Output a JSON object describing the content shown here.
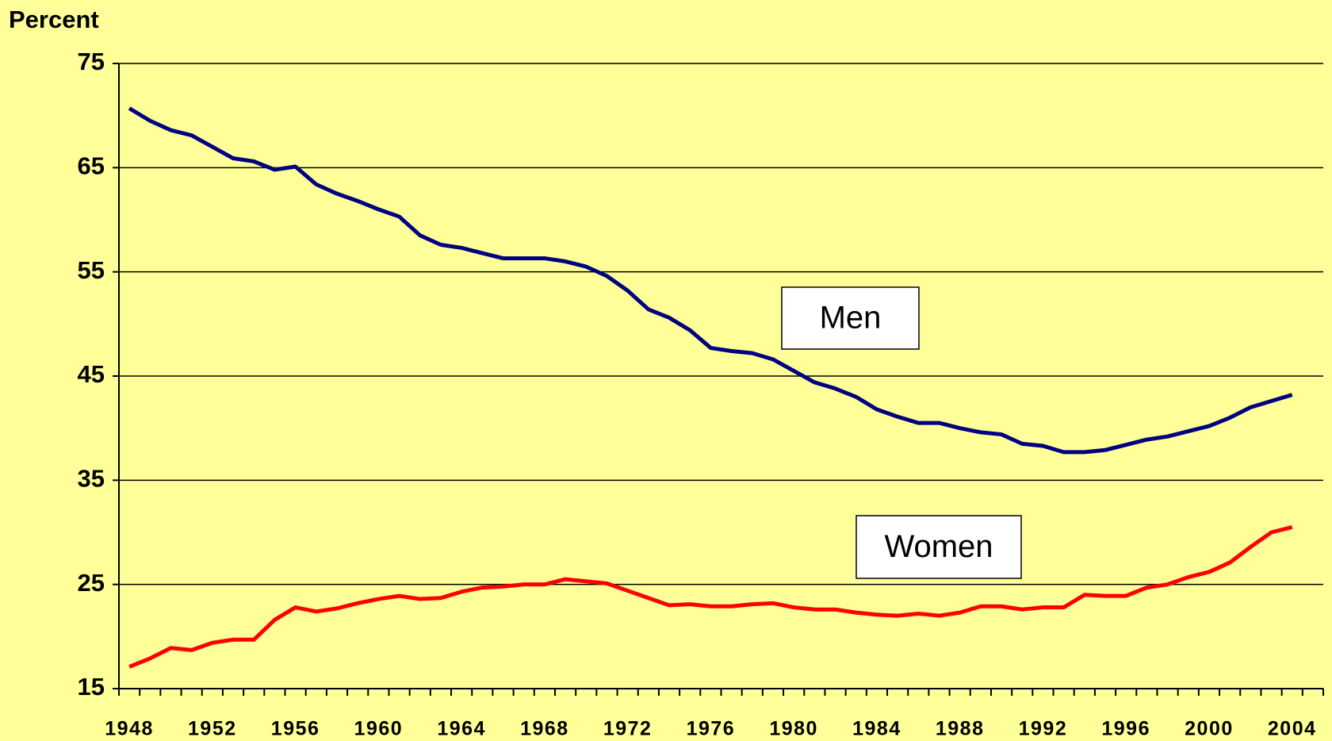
{
  "chart_data": {
    "type": "line",
    "y_label": "Percent",
    "categories": [
      "1948",
      null,
      null,
      null,
      "1952",
      null,
      null,
      null,
      "1956",
      null,
      null,
      null,
      "1960",
      null,
      null,
      null,
      "1964",
      null,
      null,
      null,
      "1968",
      null,
      null,
      null,
      "1972",
      null,
      null,
      null,
      "1976",
      null,
      null,
      null,
      "1980",
      null,
      null,
      null,
      "1984",
      null,
      null,
      null,
      "1988",
      null,
      null,
      null,
      "1992",
      null,
      null,
      null,
      "1996",
      null,
      null,
      null,
      "2000",
      null,
      null,
      null,
      "2004",
      null
    ],
    "series": [
      {
        "name": "Men",
        "color": "#000080",
        "values": [
          70.7,
          69.5,
          68.6,
          68.1,
          67.0,
          65.9,
          65.6,
          64.8,
          65.1,
          63.4,
          62.5,
          61.8,
          61.0,
          60.3,
          58.5,
          57.6,
          57.3,
          56.8,
          56.3,
          56.3,
          56.3,
          56.0,
          55.5,
          54.6,
          53.2,
          51.4,
          50.6,
          49.4,
          47.7,
          47.4,
          47.2,
          46.6,
          45.5,
          44.4,
          43.8,
          43.0,
          41.8,
          41.1,
          40.5,
          40.5,
          40.0,
          39.6,
          39.4,
          38.5,
          38.3,
          37.7,
          37.7,
          37.9,
          38.4,
          38.9,
          39.2,
          39.7,
          40.2,
          41.0,
          42.0,
          42.6,
          43.2,
          null
        ]
      },
      {
        "name": "Women",
        "color": "#ff0000",
        "values": [
          17.1,
          17.9,
          18.9,
          18.7,
          19.4,
          19.7,
          19.7,
          21.6,
          22.8,
          22.4,
          22.7,
          23.2,
          23.6,
          23.9,
          23.6,
          23.7,
          24.3,
          24.7,
          24.8,
          25.0,
          25.0,
          25.5,
          25.3,
          25.1,
          24.4,
          23.7,
          23.0,
          23.1,
          22.9,
          22.9,
          23.1,
          23.2,
          22.8,
          22.6,
          22.6,
          22.3,
          22.1,
          22.0,
          22.2,
          22.0,
          22.3,
          22.9,
          22.9,
          22.6,
          22.8,
          22.8,
          24.0,
          23.9,
          23.9,
          24.7,
          25.0,
          25.7,
          26.2,
          27.1,
          28.6,
          30.0,
          30.5,
          null
        ]
      }
    ],
    "ylim": [
      15,
      75
    ],
    "yticks": [
      15,
      25,
      35,
      45,
      55,
      65,
      75
    ],
    "grid": true,
    "background": "#ffff99"
  }
}
